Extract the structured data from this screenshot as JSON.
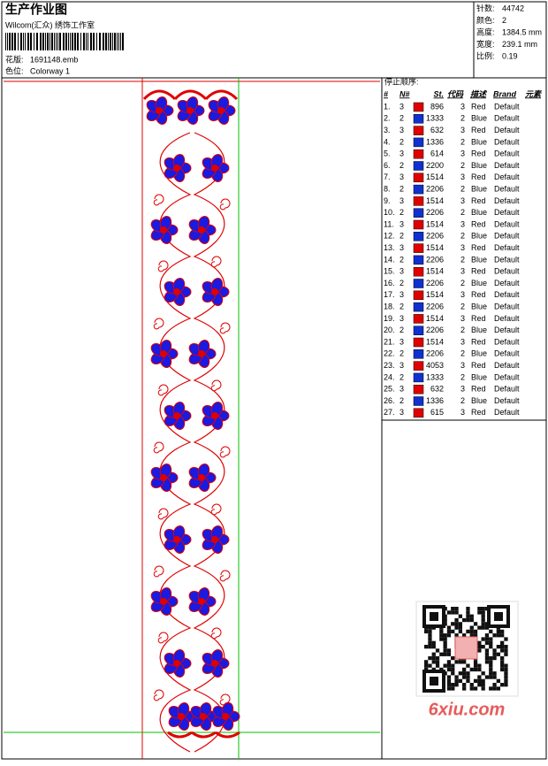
{
  "header": {
    "title": "生产作业图",
    "studio": "Wilcom(汇众) 绣饰工作室",
    "design_label": "花版:",
    "design_file": "1691148.emb",
    "colorway_label": "色位:",
    "colorway": "Colorway 1"
  },
  "stats": [
    {
      "label": "针数:",
      "value": "44742"
    },
    {
      "label": "颜色:",
      "value": "2"
    },
    {
      "label": "高度:",
      "value": "1384.5 mm"
    },
    {
      "label": "宽度:",
      "value": "239.1 mm"
    },
    {
      "label": "比例:",
      "value": "0.19"
    }
  ],
  "sequence": {
    "title": "停止顺序:",
    "headers": [
      "#",
      "N#",
      "St.",
      "代码",
      "描述",
      "Brand",
      "元素"
    ],
    "rows": [
      {
        "no": "1.",
        "n": "3",
        "color": "#e00000",
        "st": "896",
        "code": "3",
        "desc": "Red",
        "brand": "Default"
      },
      {
        "no": "2.",
        "n": "2",
        "color": "#1030d0",
        "st": "1333",
        "code": "2",
        "desc": "Blue",
        "brand": "Default"
      },
      {
        "no": "3.",
        "n": "3",
        "color": "#e00000",
        "st": "632",
        "code": "3",
        "desc": "Red",
        "brand": "Default"
      },
      {
        "no": "4.",
        "n": "2",
        "color": "#1030d0",
        "st": "1336",
        "code": "2",
        "desc": "Blue",
        "brand": "Default"
      },
      {
        "no": "5.",
        "n": "3",
        "color": "#e00000",
        "st": "614",
        "code": "3",
        "desc": "Red",
        "brand": "Default"
      },
      {
        "no": "6.",
        "n": "2",
        "color": "#1030d0",
        "st": "2200",
        "code": "2",
        "desc": "Blue",
        "brand": "Default"
      },
      {
        "no": "7.",
        "n": "3",
        "color": "#e00000",
        "st": "1514",
        "code": "3",
        "desc": "Red",
        "brand": "Default"
      },
      {
        "no": "8.",
        "n": "2",
        "color": "#1030d0",
        "st": "2206",
        "code": "2",
        "desc": "Blue",
        "brand": "Default"
      },
      {
        "no": "9.",
        "n": "3",
        "color": "#e00000",
        "st": "1514",
        "code": "3",
        "desc": "Red",
        "brand": "Default"
      },
      {
        "no": "10.",
        "n": "2",
        "color": "#1030d0",
        "st": "2206",
        "code": "2",
        "desc": "Blue",
        "brand": "Default"
      },
      {
        "no": "11.",
        "n": "3",
        "color": "#e00000",
        "st": "1514",
        "code": "3",
        "desc": "Red",
        "brand": "Default"
      },
      {
        "no": "12.",
        "n": "2",
        "color": "#1030d0",
        "st": "2206",
        "code": "2",
        "desc": "Blue",
        "brand": "Default"
      },
      {
        "no": "13.",
        "n": "3",
        "color": "#e00000",
        "st": "1514",
        "code": "3",
        "desc": "Red",
        "brand": "Default"
      },
      {
        "no": "14.",
        "n": "2",
        "color": "#1030d0",
        "st": "2206",
        "code": "2",
        "desc": "Blue",
        "brand": "Default"
      },
      {
        "no": "15.",
        "n": "3",
        "color": "#e00000",
        "st": "1514",
        "code": "3",
        "desc": "Red",
        "brand": "Default"
      },
      {
        "no": "16.",
        "n": "2",
        "color": "#1030d0",
        "st": "2206",
        "code": "2",
        "desc": "Blue",
        "brand": "Default"
      },
      {
        "no": "17.",
        "n": "3",
        "color": "#e00000",
        "st": "1514",
        "code": "3",
        "desc": "Red",
        "brand": "Default"
      },
      {
        "no": "18.",
        "n": "2",
        "color": "#1030d0",
        "st": "2206",
        "code": "2",
        "desc": "Blue",
        "brand": "Default"
      },
      {
        "no": "19.",
        "n": "3",
        "color": "#e00000",
        "st": "1514",
        "code": "3",
        "desc": "Red",
        "brand": "Default"
      },
      {
        "no": "20.",
        "n": "2",
        "color": "#1030d0",
        "st": "2206",
        "code": "2",
        "desc": "Blue",
        "brand": "Default"
      },
      {
        "no": "21.",
        "n": "3",
        "color": "#e00000",
        "st": "1514",
        "code": "3",
        "desc": "Red",
        "brand": "Default"
      },
      {
        "no": "22.",
        "n": "2",
        "color": "#1030d0",
        "st": "2206",
        "code": "2",
        "desc": "Blue",
        "brand": "Default"
      },
      {
        "no": "23.",
        "n": "3",
        "color": "#e00000",
        "st": "4053",
        "code": "3",
        "desc": "Red",
        "brand": "Default"
      },
      {
        "no": "24.",
        "n": "2",
        "color": "#1030d0",
        "st": "1333",
        "code": "2",
        "desc": "Blue",
        "brand": "Default"
      },
      {
        "no": "25.",
        "n": "3",
        "color": "#e00000",
        "st": "632",
        "code": "3",
        "desc": "Red",
        "brand": "Default"
      },
      {
        "no": "26.",
        "n": "2",
        "color": "#1030d0",
        "st": "1336",
        "code": "2",
        "desc": "Blue",
        "brand": "Default"
      },
      {
        "no": "27.",
        "n": "3",
        "color": "#e00000",
        "st": "615",
        "code": "3",
        "desc": "Red",
        "brand": "Default"
      }
    ]
  },
  "watermark": "6xiu.com"
}
